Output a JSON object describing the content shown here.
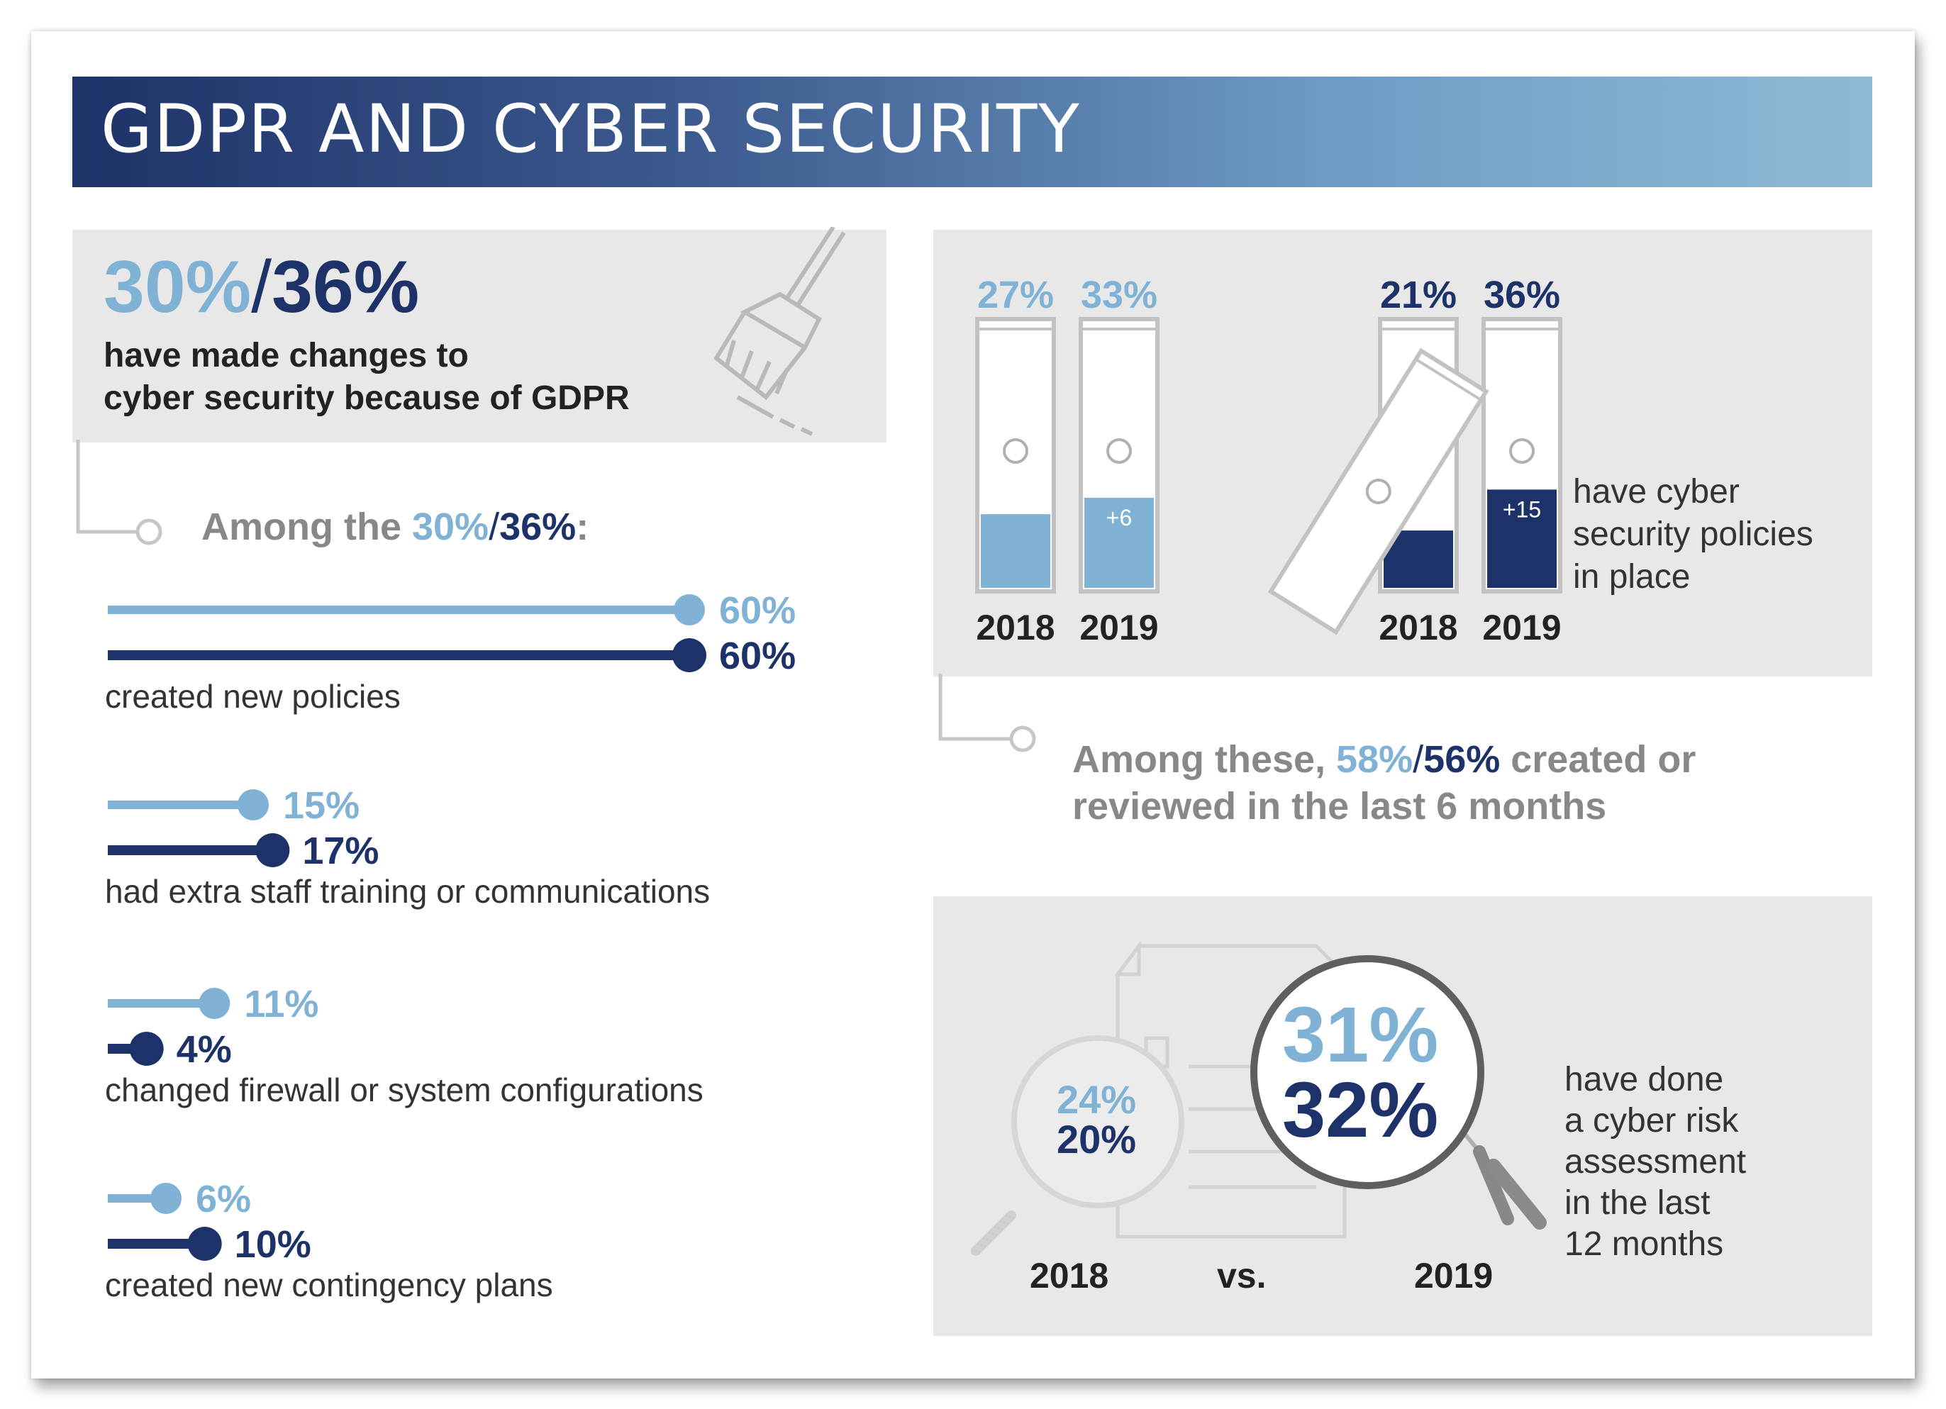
{
  "title": "GDPR AND CYBER SECURITY",
  "colors": {
    "light": "#7fb2d4",
    "dark": "#1d3268",
    "grey": "#888888"
  },
  "intro": {
    "value_2018": "30%",
    "separator": "/",
    "value_2019": "36%",
    "text_line1": "have made changes to",
    "text_line2": "cyber security because of GDPR",
    "icon": "broom-icon"
  },
  "among": {
    "prefix": "Among the ",
    "value_2018": "30%",
    "separator": "/",
    "value_2019": "36%",
    "suffix": ":"
  },
  "chart_data": [
    {
      "type": "bar",
      "orientation": "horizontal",
      "title": "Among the 30%/36%:",
      "categories": [
        "created new policies",
        "had extra staff training or communications",
        "changed firewall or system configurations",
        "created new contingency plans"
      ],
      "series": [
        {
          "name": "2018",
          "color": "#7fb2d4",
          "values": [
            60,
            15,
            11,
            6
          ],
          "labels": [
            "60%",
            "15%",
            "11%",
            "6%"
          ]
        },
        {
          "name": "2019",
          "color": "#1d3268",
          "values": [
            60,
            17,
            4,
            10
          ],
          "labels": [
            "60%",
            "17%",
            "4%",
            "10%"
          ]
        }
      ],
      "xlim": [
        0,
        60
      ]
    },
    {
      "type": "bar",
      "title": "have cyber security policies in place",
      "categories": [
        "2018",
        "2019",
        "2018",
        "2019"
      ],
      "groups": [
        {
          "values": [
            27,
            33
          ],
          "labels": [
            "27%",
            "33%"
          ],
          "change": "+6",
          "color": "#7fb2d4"
        },
        {
          "values": [
            21,
            36
          ],
          "labels": [
            "21%",
            "36%"
          ],
          "change": "+15",
          "color": "#1d3268"
        }
      ],
      "ylim": [
        0,
        100
      ]
    },
    {
      "type": "table",
      "title": "have done a cyber risk assessment in the last 12 months",
      "years": [
        "2018",
        "2019"
      ],
      "rows": [
        {
          "year": "2018",
          "values": [
            "24%",
            "20%"
          ]
        },
        {
          "year": "2019",
          "values": [
            "31%",
            "32%"
          ]
        }
      ]
    }
  ],
  "policies": {
    "caption_lines": [
      "have cyber",
      "security policies",
      "in place"
    ],
    "years": [
      "2018",
      "2019",
      "2018",
      "2019"
    ],
    "among_prefix": "Among these, ",
    "among_value_2018": "58%",
    "among_separator": "/",
    "among_value_2019": "56%",
    "among_suffix": " created or",
    "among_line2": "reviewed in the last 6 months"
  },
  "risk": {
    "small_2018": "24%",
    "small_2019": "20%",
    "big_2018": "31%",
    "big_2019": "32%",
    "year_left": "2018",
    "vs": "vs.",
    "year_right": "2019",
    "caption_lines": [
      "have done",
      "a cyber risk",
      "assessment",
      "in the last",
      "12 months"
    ],
    "icon": "magnifier-icon"
  }
}
